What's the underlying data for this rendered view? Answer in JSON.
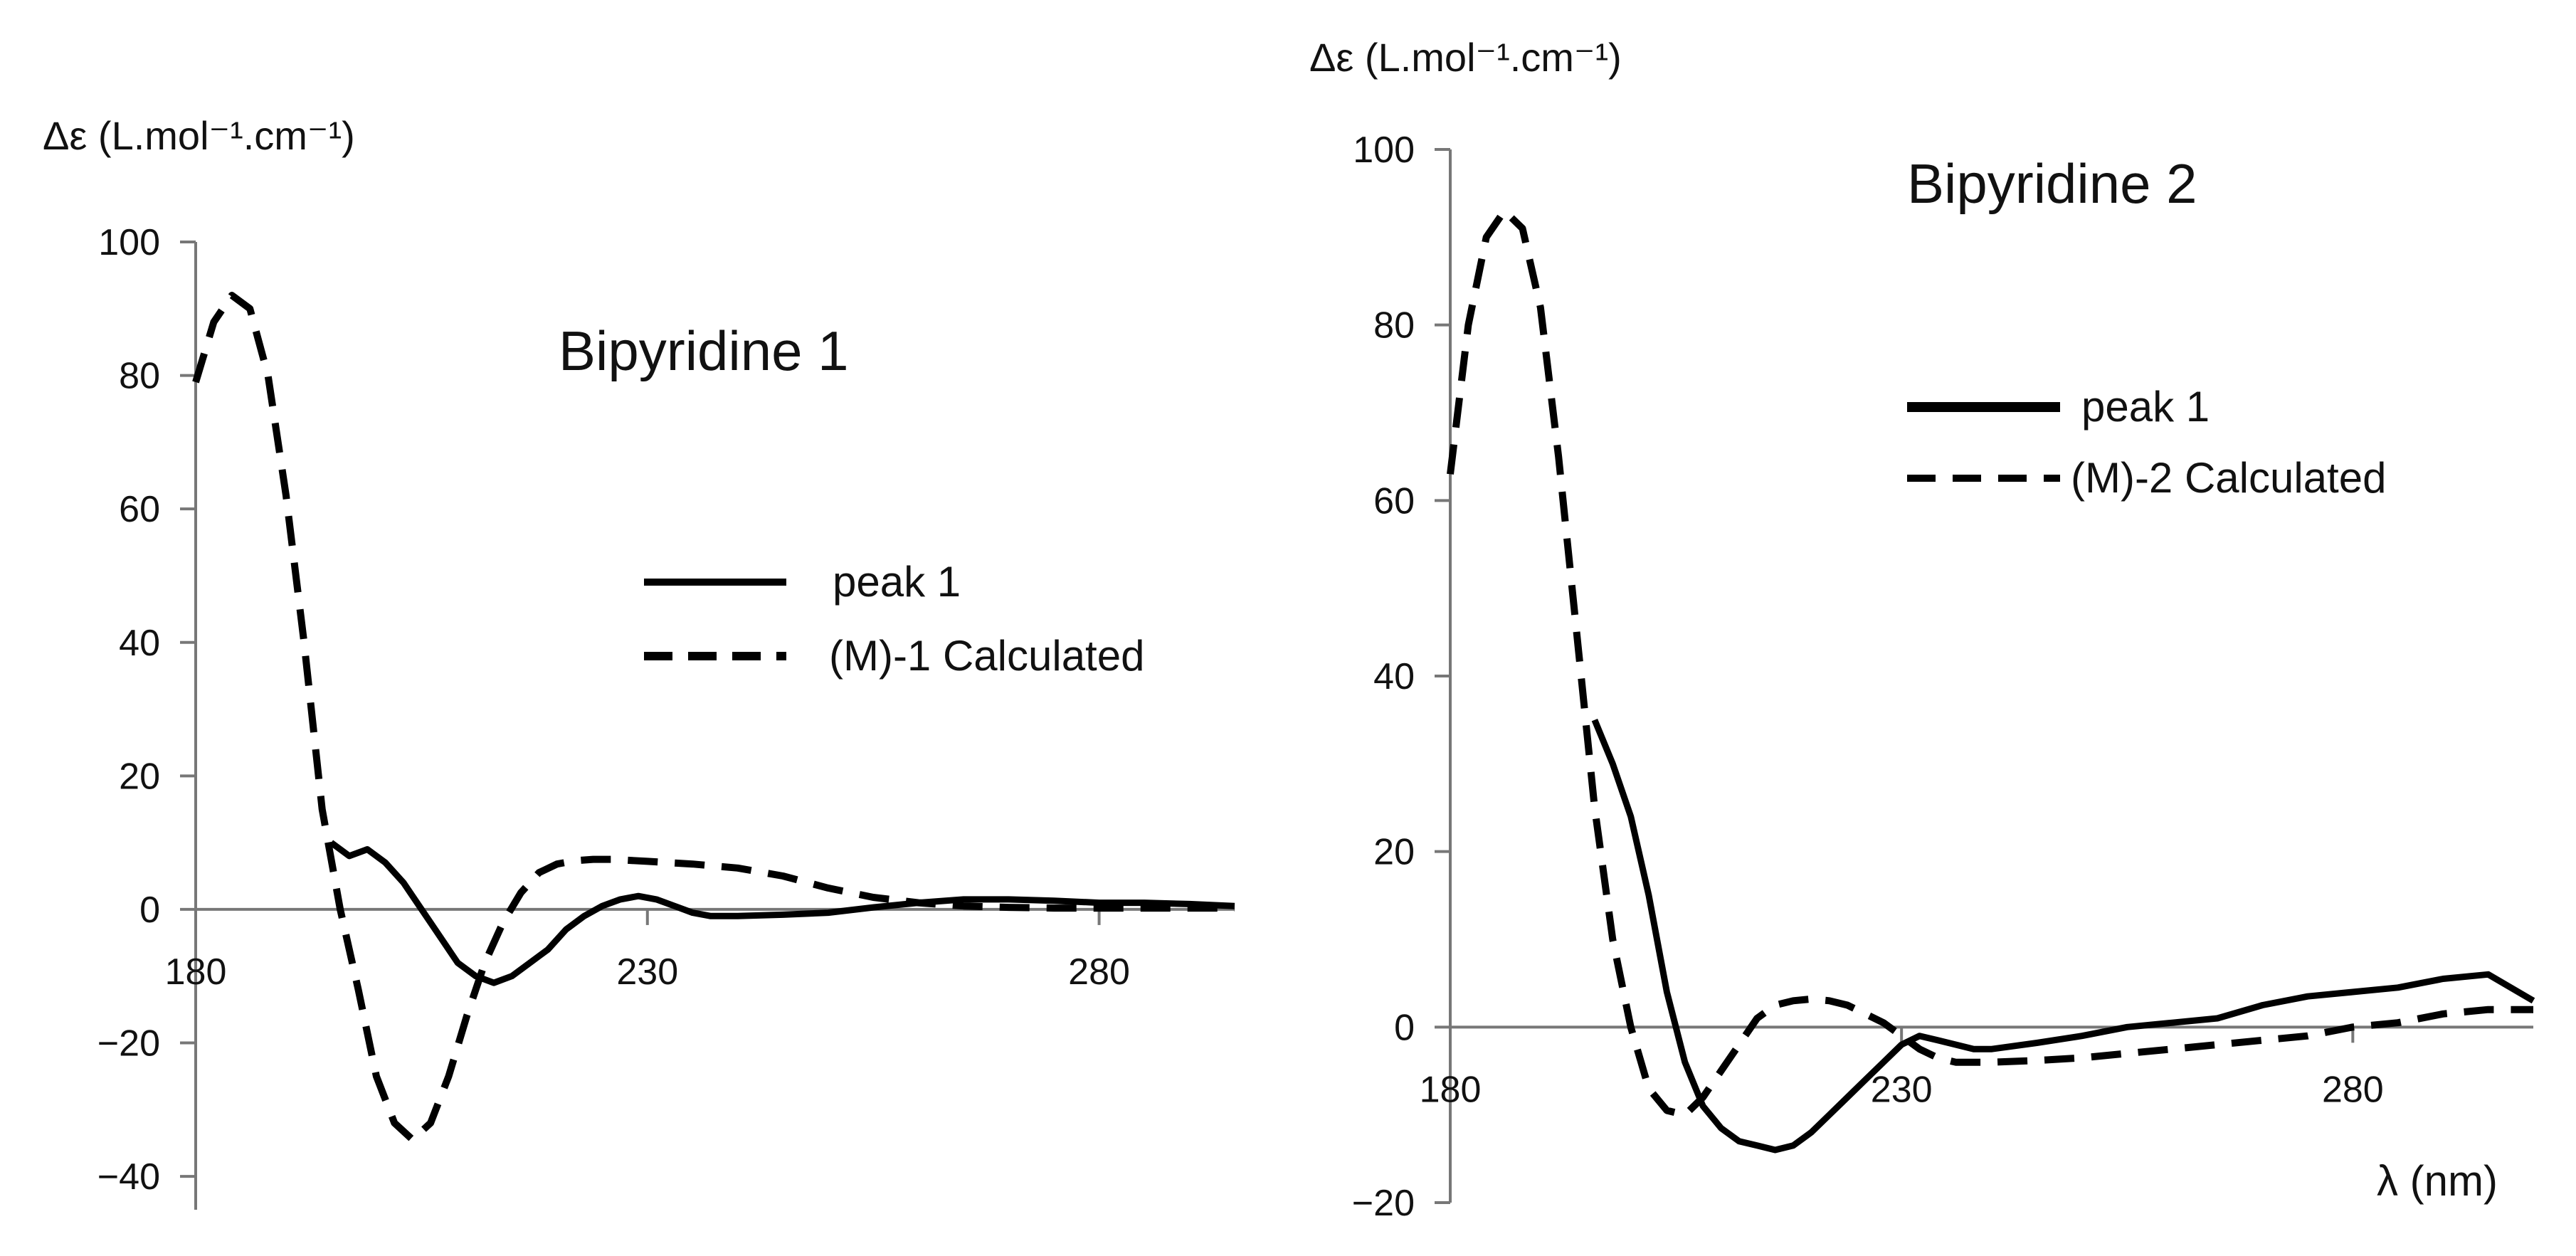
{
  "figure": {
    "background": "#ffffff",
    "ink": "#000000"
  },
  "chart_data": [
    {
      "type": "line",
      "title": "Bipyridine 1",
      "ylabel": "Δε (L.mol⁻¹.cm⁻¹)",
      "xlabel": "",
      "xlim": [
        180,
        295
      ],
      "ylim": [
        -45,
        100
      ],
      "xticks": [
        180,
        230,
        280
      ],
      "yticks": [
        100,
        80,
        60,
        40,
        20,
        0,
        -20,
        -40
      ],
      "grid": false,
      "legend_placement": "center-right",
      "legend": [
        {
          "label": "peak 1",
          "style": "solid"
        },
        {
          "label": "(M)-1 Calculated",
          "style": "dashed"
        }
      ],
      "series": [
        {
          "name": "peak 1",
          "style": "solid",
          "x": [
            195,
            197,
            199,
            201,
            203,
            205,
            207,
            209,
            211,
            213,
            215,
            217,
            219,
            221,
            223,
            225,
            227,
            229,
            231,
            233,
            235,
            237,
            240,
            245,
            250,
            255,
            260,
            265,
            270,
            275,
            280,
            285,
            290,
            295
          ],
          "y": [
            10,
            8,
            9,
            7,
            4,
            0,
            -4,
            -8,
            -10,
            -11,
            -10,
            -8,
            -6,
            -3,
            -1,
            0.5,
            1.5,
            2,
            1.5,
            0.5,
            -0.5,
            -1,
            -1,
            -0.8,
            -0.5,
            0.3,
            1,
            1.5,
            1.5,
            1.3,
            1,
            1,
            0.8,
            0.5
          ]
        },
        {
          "name": "(M)-1 Calculated",
          "style": "dashed",
          "x": [
            180,
            182,
            184,
            186,
            188,
            190,
            192,
            194,
            196,
            198,
            200,
            202,
            204,
            206,
            208,
            210,
            212,
            214,
            216,
            218,
            220,
            222,
            224,
            226,
            230,
            235,
            240,
            245,
            250,
            255,
            260,
            265,
            270,
            275,
            280,
            285,
            290,
            295
          ],
          "y": [
            79,
            88,
            92,
            90,
            80,
            62,
            40,
            15,
            0,
            -12,
            -25,
            -32,
            -34.5,
            -32,
            -25,
            -16,
            -8,
            -2,
            2.5,
            5.5,
            6.8,
            7.3,
            7.5,
            7.5,
            7.2,
            6.8,
            6.2,
            5,
            3.2,
            1.8,
            1,
            0.5,
            0.3,
            0.2,
            0.2,
            0.2,
            0.2,
            0.2
          ]
        }
      ]
    },
    {
      "type": "line",
      "title": "Bipyridine 2",
      "ylabel": "Δε (L.mol⁻¹.cm⁻¹)",
      "xlabel": "λ (nm)",
      "xlim": [
        180,
        300
      ],
      "ylim": [
        -20,
        100
      ],
      "xticks": [
        180,
        230,
        280
      ],
      "yticks": [
        100,
        80,
        60,
        40,
        20,
        0,
        -20
      ],
      "grid": false,
      "legend_placement": "top-right",
      "legend": [
        {
          "label": "peak 1",
          "style": "solid"
        },
        {
          "label": "(M)-2 Calculated",
          "style": "dashed"
        }
      ],
      "series": [
        {
          "name": "peak 1",
          "style": "solid",
          "x": [
            196,
            198,
            200,
            202,
            204,
            206,
            208,
            210,
            212,
            214,
            216,
            218,
            220,
            222,
            224,
            226,
            228,
            230,
            232,
            234,
            236,
            238,
            240,
            245,
            250,
            255,
            260,
            265,
            270,
            275,
            280,
            285,
            290,
            295,
            300
          ],
          "y": [
            35,
            30,
            24,
            15,
            4,
            -4,
            -9,
            -11.5,
            -13,
            -13.5,
            -14,
            -13.5,
            -12,
            -10,
            -8,
            -6,
            -4,
            -2,
            -1,
            -1.5,
            -2,
            -2.5,
            -2.5,
            -1.8,
            -1,
            0,
            0.5,
            1,
            2.5,
            3.5,
            4,
            4.5,
            5.5,
            6,
            3
          ]
        },
        {
          "name": "(M)-2 Calculated",
          "style": "dashed",
          "x": [
            180,
            182,
            184,
            186,
            188,
            190,
            192,
            194,
            196,
            198,
            200,
            202,
            204,
            206,
            208,
            210,
            212,
            214,
            216,
            218,
            220,
            222,
            224,
            226,
            228,
            230,
            232,
            234,
            236,
            238,
            240,
            245,
            250,
            255,
            260,
            265,
            270,
            275,
            280,
            285,
            290,
            295,
            300
          ],
          "y": [
            63,
            80,
            90,
            93,
            91,
            82,
            65,
            45,
            25,
            10,
            0,
            -7,
            -9.5,
            -10,
            -8,
            -5,
            -2,
            1,
            2.5,
            3,
            3.2,
            3,
            2.5,
            1.5,
            0.5,
            -1,
            -2.5,
            -3.5,
            -4,
            -4,
            -4,
            -3.8,
            -3.5,
            -3,
            -2.5,
            -2,
            -1.5,
            -1,
            0,
            0.5,
            1.5,
            2,
            2
          ]
        }
      ]
    }
  ]
}
